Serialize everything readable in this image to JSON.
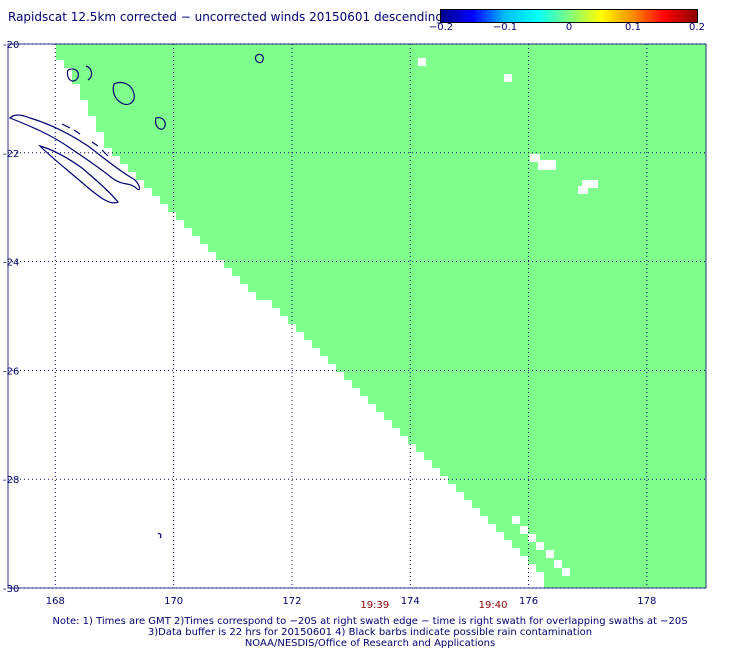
{
  "title": "Rapidscat 12.5km corrected − uncorrected winds 20150601 descending",
  "colorbar": {
    "colors": [
      "#00008b",
      "#0000ff",
      "#00bfff",
      "#00ffff",
      "#7fff7f",
      "#ffff00",
      "#ff8c00",
      "#ff0000",
      "#8b0000"
    ],
    "ticks": [
      {
        "value": -0.2,
        "label": "−0.2"
      },
      {
        "value": -0.1,
        "label": "−0.1"
      },
      {
        "value": 0,
        "label": "0"
      },
      {
        "value": 0.1,
        "label": "0.1"
      },
      {
        "value": 0.2,
        "label": "0.2"
      }
    ],
    "range": [
      -0.2,
      0.2
    ]
  },
  "map": {
    "lon_range": [
      167.2,
      179.0
    ],
    "lat_range": [
      -30,
      -20
    ],
    "lon_ticks": [
      {
        "value": 168,
        "label": "168"
      },
      {
        "value": 170,
        "label": "170"
      },
      {
        "value": 172,
        "label": "172"
      },
      {
        "value": 174,
        "label": "174"
      },
      {
        "value": 176,
        "label": "176"
      },
      {
        "value": 178,
        "label": "178"
      }
    ],
    "lat_ticks": [
      {
        "value": -20,
        "label": "-20"
      },
      {
        "value": -22,
        "label": "-22"
      },
      {
        "value": -24,
        "label": "-24"
      },
      {
        "value": -26,
        "label": "-26"
      },
      {
        "value": -28,
        "label": "-28"
      },
      {
        "value": -30,
        "label": "-30"
      }
    ],
    "grid": "dotted",
    "swath_color": "#7fff8c",
    "coast_color": "#000070",
    "swath_edge": [
      {
        "lat": -20.0,
        "lon": 168.0
      },
      {
        "lat": -22.0,
        "lon": 169.0
      },
      {
        "lat": -24.0,
        "lon": 170.9
      },
      {
        "lat": -26.0,
        "lon": 172.9
      },
      {
        "lat": -28.0,
        "lon": 174.7
      },
      {
        "lat": -29.6,
        "lon": 176.2
      },
      {
        "lat": -30.0,
        "lon": 176.3
      }
    ],
    "swath_time_labels": [
      {
        "lon": 173.4,
        "label": "19:39"
      },
      {
        "lon": 175.4,
        "label": "19:40"
      }
    ]
  },
  "notes": [
    "Note: 1) Times are GMT 2)Times correspond to −20S at right swath edge − time is right swath for overlapping swaths at −20S",
    "3)Data buffer is 22 hrs for 20150601 4) Black barbs indicate possible rain contamination",
    "NOAA/NESDIS/Office of Research and Applications"
  ]
}
